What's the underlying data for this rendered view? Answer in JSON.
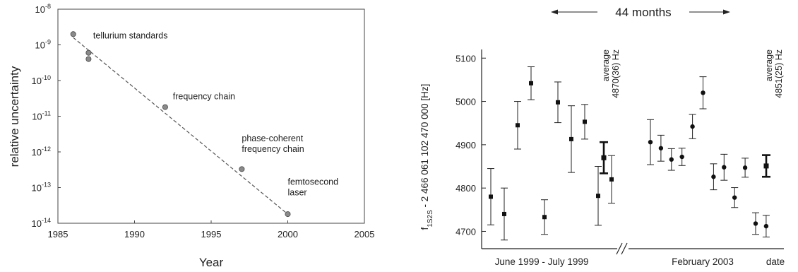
{
  "chart_data": [
    {
      "type": "scatter",
      "xlabel": "Year",
      "ylabel": "relative uncertainty",
      "xlim": [
        1985,
        2005
      ],
      "ylim_log10": [
        -14,
        -8
      ],
      "log_y": true,
      "grid": false,
      "x_ticks": [
        "1985",
        "1990",
        "1995",
        "2000",
        "2005"
      ],
      "y_tick_bases": [
        "10",
        "10",
        "10",
        "10",
        "10",
        "10",
        "10"
      ],
      "y_tick_exps": [
        "-8",
        "-9",
        "-10",
        "-11",
        "-12",
        "-13",
        "-14"
      ],
      "points": [
        {
          "x": 1986.0,
          "y": 2e-09
        },
        {
          "x": 1987.0,
          "y": 6e-10
        },
        {
          "x": 1987.0,
          "y": 4e-10
        },
        {
          "x": 1992.0,
          "y": 1.8e-11
        },
        {
          "x": 1997.0,
          "y": 3.3e-13
        },
        {
          "x": 2000.0,
          "y": 1.8e-14
        }
      ],
      "trend_line": [
        {
          "x": 1986.0,
          "y": 1.6e-09
        },
        {
          "x": 2000.0,
          "y": 1.8e-14
        }
      ],
      "annotations": [
        {
          "lines": [
            "tellurium standards"
          ],
          "x": 1987.3,
          "y": 1.5e-09
        },
        {
          "lines": [
            "frequency chain"
          ],
          "x": 1992.5,
          "y": 3e-11
        },
        {
          "lines": [
            "phase-coherent",
            "frequency chain"
          ],
          "x": 1997.0,
          "y": 2e-12
        },
        {
          "lines": [
            "femtosecond",
            "laser"
          ],
          "x": 2000.0,
          "y": 1.2e-13
        }
      ]
    },
    {
      "type": "scatter",
      "ylabel_prefix": "f",
      "ylabel_sub": "1S2S",
      "ylabel_rest": " - 2 466 061 102 470 000 [Hz]",
      "xlabel_left": "June 1999 - July 1999",
      "xlabel_right": "February 2003",
      "xlabel_end": "date",
      "ylim": [
        4660,
        5120
      ],
      "y_ticks": [
        "5100",
        "5000",
        "4900",
        "4800",
        "4700"
      ],
      "y_tick_values": [
        5100,
        5000,
        4900,
        4800,
        4700
      ],
      "span_label": "44 months",
      "axis_break": true,
      "series": [
        {
          "period": "June 1999 - July 1999",
          "points": [
            {
              "y": 4780,
              "err": 65
            },
            {
              "y": 4740,
              "err": 60
            },
            {
              "y": 4945,
              "err": 55
            },
            {
              "y": 5042,
              "err": 38
            },
            {
              "y": 4733,
              "err": 40
            },
            {
              "y": 4998,
              "err": 47
            },
            {
              "y": 4913,
              "err": 77
            },
            {
              "y": 4953,
              "err": 40
            },
            {
              "y": 4782,
              "err": 68
            },
            {
              "y": 4820,
              "err": 55
            }
          ],
          "average": {
            "y": 4870,
            "err": 36,
            "label_line1": "average",
            "label_line2": "4870(36) Hz"
          }
        },
        {
          "period": "February 2003",
          "points": [
            {
              "y": 4906,
              "err": 52
            },
            {
              "y": 4892,
              "err": 30
            },
            {
              "y": 4866,
              "err": 25
            },
            {
              "y": 4872,
              "err": 20
            },
            {
              "y": 4942,
              "err": 28
            },
            {
              "y": 5020,
              "err": 37
            },
            {
              "y": 4826,
              "err": 30
            },
            {
              "y": 4848,
              "err": 30
            },
            {
              "y": 4778,
              "err": 23
            },
            {
              "y": 4847,
              "err": 22
            },
            {
              "y": 4718,
              "err": 25
            },
            {
              "y": 4712,
              "err": 25
            }
          ],
          "average": {
            "y": 4851,
            "err": 25,
            "label_line1": "average",
            "label_line2": "4851(25) Hz"
          }
        }
      ]
    }
  ]
}
